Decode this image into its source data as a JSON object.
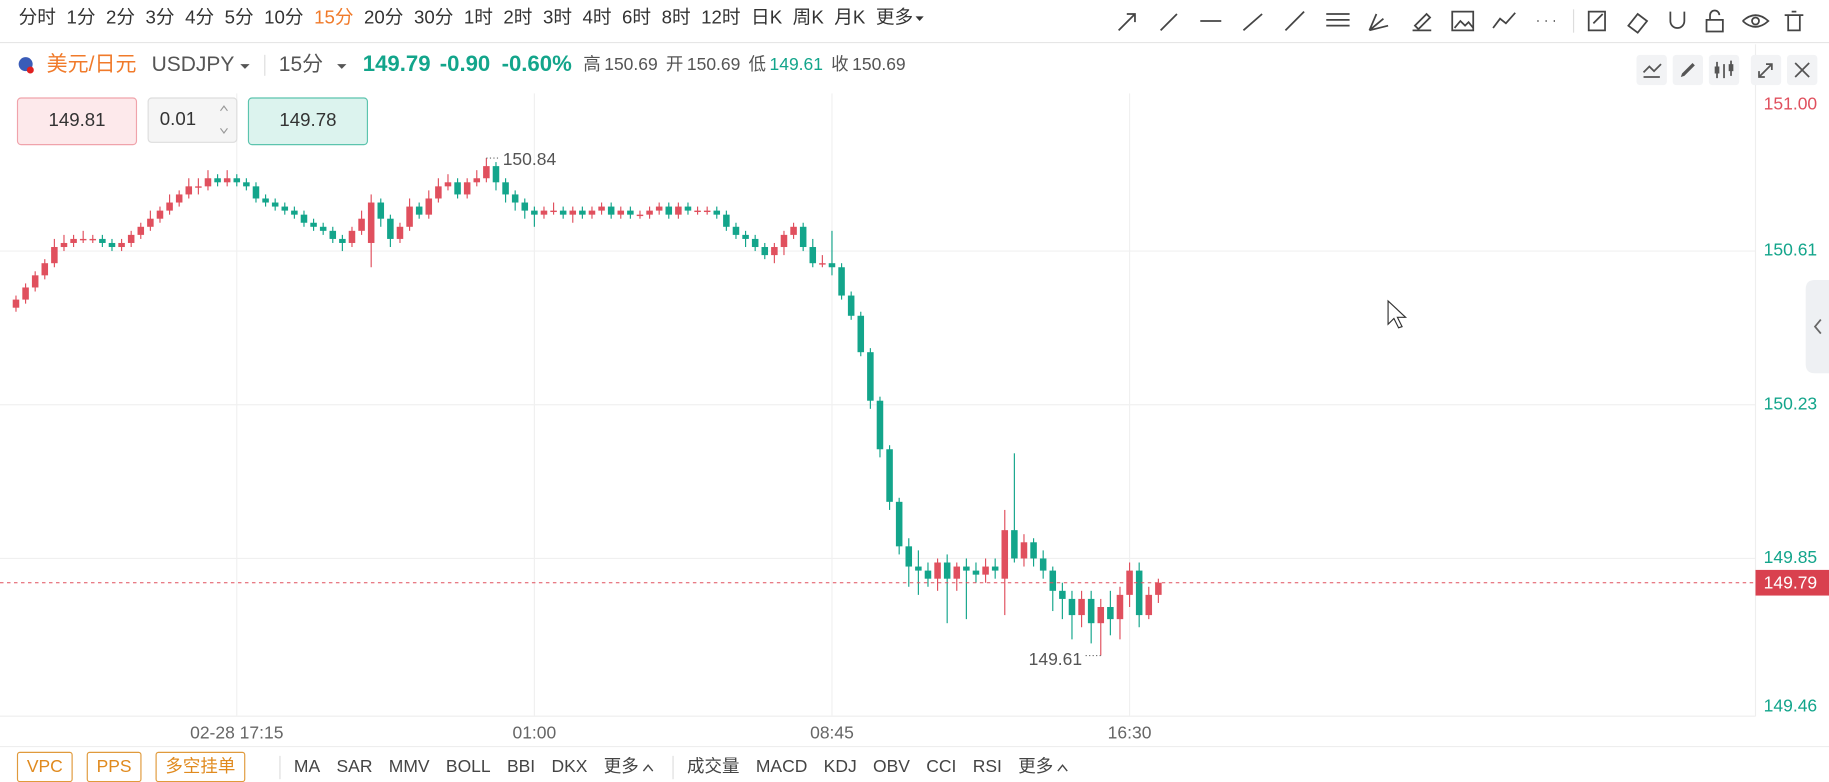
{
  "toolbar": {
    "intervals": [
      "分时",
      "1分",
      "2分",
      "3分",
      "4分",
      "5分",
      "10分",
      "15分",
      "20分",
      "30分",
      "1时",
      "2时",
      "3时",
      "4时",
      "6时",
      "8时",
      "12时",
      "日K",
      "周K",
      "月K",
      "更多"
    ]
  },
  "header": {
    "name": "美元/日元",
    "symbol": "USDJPY",
    "interval": "15分",
    "price": "149.79",
    "change": "-0.90",
    "change_pct": "-0.60%",
    "stats": [
      {
        "label": "高",
        "value": "150.69"
      },
      {
        "label": "开",
        "value": "150.69"
      },
      {
        "label": "低",
        "value": "149.61"
      },
      {
        "label": "收",
        "value": "150.69"
      }
    ]
  },
  "order": {
    "sell": "149.81",
    "lot": "0.01",
    "buy": "149.78"
  },
  "chart_data": {
    "type": "candlestick",
    "categories": [
      null,
      null,
      null,
      null,
      null,
      null,
      null,
      null,
      null,
      null,
      null,
      null,
      null,
      null,
      null,
      null,
      null,
      null,
      null,
      null,
      null,
      null,
      null,
      "02-28 17:15",
      null,
      null,
      null,
      null,
      null,
      null,
      null,
      null,
      null,
      null,
      null,
      null,
      null,
      null,
      null,
      null,
      null,
      null,
      null,
      null,
      null,
      null,
      null,
      null,
      null,
      null,
      null,
      null,
      null,
      null,
      "01:00",
      null,
      null,
      null,
      null,
      null,
      null,
      null,
      null,
      null,
      null,
      null,
      null,
      null,
      null,
      null,
      null,
      null,
      null,
      null,
      null,
      null,
      null,
      null,
      null,
      null,
      null,
      null,
      null,
      null,
      null,
      "08:45",
      null,
      null,
      null,
      null,
      null,
      null,
      null,
      null,
      null,
      null,
      null,
      null,
      null,
      null,
      null,
      null,
      null,
      null,
      null,
      null,
      null,
      null,
      null,
      null,
      null,
      null,
      null,
      null,
      null,
      null,
      "16:30",
      null,
      null,
      null
    ],
    "open": [
      150.47,
      150.49,
      150.52,
      150.55,
      150.58,
      150.62,
      150.63,
      150.64,
      150.64,
      150.64,
      150.63,
      150.62,
      150.63,
      150.65,
      150.67,
      150.69,
      150.71,
      150.73,
      150.75,
      150.77,
      150.77,
      150.79,
      150.78,
      150.79,
      150.78,
      150.77,
      150.74,
      150.73,
      150.72,
      150.71,
      150.7,
      150.68,
      150.67,
      150.66,
      150.64,
      150.63,
      150.66,
      150.63,
      150.73,
      150.69,
      150.64,
      150.67,
      150.72,
      150.7,
      150.74,
      150.77,
      150.78,
      150.75,
      150.78,
      150.79,
      150.82,
      150.78,
      150.75,
      150.73,
      150.71,
      150.7,
      150.71,
      150.71,
      150.7,
      150.71,
      150.7,
      150.71,
      150.72,
      150.7,
      150.71,
      150.7,
      150.7,
      150.71,
      150.72,
      150.7,
      150.72,
      150.71,
      150.71,
      150.71,
      150.7,
      150.67,
      150.65,
      150.64,
      150.62,
      150.6,
      150.62,
      150.65,
      150.67,
      150.62,
      150.58,
      150.58,
      150.57,
      150.5,
      150.45,
      150.36,
      150.24,
      150.12,
      149.99,
      149.88,
      149.83,
      149.82,
      149.8,
      149.84,
      149.8,
      149.83,
      149.82,
      149.81,
      149.83,
      149.8,
      149.92,
      149.85,
      149.89,
      149.85,
      149.82,
      149.77,
      149.75,
      149.71,
      149.75,
      149.69,
      149.73,
      149.7,
      149.76,
      149.82,
      149.71,
      149.76
    ],
    "high": [
      150.5,
      150.53,
      150.56,
      150.59,
      150.64,
      150.65,
      150.65,
      150.66,
      150.65,
      150.65,
      150.64,
      150.64,
      150.66,
      150.68,
      150.71,
      150.72,
      150.75,
      150.76,
      150.79,
      150.79,
      150.81,
      150.8,
      150.81,
      150.8,
      150.79,
      150.78,
      150.75,
      150.74,
      150.73,
      150.72,
      150.71,
      150.69,
      150.68,
      150.67,
      150.65,
      150.67,
      150.71,
      150.75,
      150.74,
      150.7,
      150.68,
      150.74,
      150.73,
      150.76,
      150.79,
      150.8,
      150.79,
      150.79,
      150.81,
      150.84,
      150.83,
      150.79,
      150.76,
      150.74,
      150.72,
      150.72,
      150.73,
      150.72,
      150.72,
      150.72,
      150.72,
      150.73,
      150.73,
      150.72,
      150.72,
      150.71,
      150.72,
      150.73,
      150.73,
      150.73,
      150.73,
      150.72,
      150.72,
      150.72,
      150.71,
      150.68,
      150.66,
      150.65,
      150.63,
      150.63,
      150.66,
      150.68,
      150.68,
      150.64,
      150.6,
      150.66,
      150.58,
      150.51,
      150.46,
      150.37,
      150.25,
      150.13,
      150.0,
      149.9,
      149.87,
      149.84,
      149.85,
      149.86,
      149.84,
      149.85,
      149.84,
      149.85,
      149.85,
      149.97,
      150.11,
      149.91,
      149.9,
      149.87,
      149.83,
      149.79,
      149.77,
      149.77,
      149.77,
      149.75,
      149.77,
      149.78,
      149.84,
      149.84,
      149.78,
      149.8
    ],
    "low": [
      150.46,
      150.48,
      150.51,
      150.54,
      150.57,
      150.61,
      150.62,
      150.63,
      150.63,
      150.62,
      150.61,
      150.61,
      150.62,
      150.64,
      150.66,
      150.68,
      150.7,
      150.72,
      150.74,
      150.75,
      150.76,
      150.77,
      150.77,
      150.77,
      150.76,
      150.73,
      150.72,
      150.71,
      150.7,
      150.69,
      150.67,
      150.66,
      150.65,
      150.63,
      150.61,
      150.62,
      150.65,
      150.57,
      150.67,
      150.62,
      150.63,
      150.66,
      150.69,
      150.69,
      150.73,
      150.76,
      150.74,
      150.74,
      150.77,
      150.78,
      150.76,
      150.73,
      150.71,
      150.69,
      150.67,
      150.69,
      150.7,
      150.69,
      150.68,
      150.69,
      150.69,
      150.7,
      150.69,
      150.69,
      150.69,
      150.69,
      150.69,
      150.7,
      150.69,
      150.69,
      150.7,
      150.7,
      150.7,
      150.69,
      150.66,
      150.64,
      150.62,
      150.61,
      150.59,
      150.58,
      150.6,
      150.64,
      150.61,
      150.57,
      150.57,
      150.55,
      150.49,
      150.44,
      150.35,
      150.22,
      150.1,
      149.97,
      149.86,
      149.78,
      149.76,
      149.78,
      149.77,
      149.69,
      149.77,
      149.7,
      149.79,
      149.79,
      149.8,
      149.71,
      149.84,
      149.83,
      149.83,
      149.8,
      149.72,
      149.7,
      149.65,
      149.68,
      149.64,
      149.61,
      149.66,
      149.65,
      149.73,
      149.68,
      149.7,
      149.74
    ],
    "close": [
      150.49,
      150.52,
      150.55,
      150.58,
      150.62,
      150.63,
      150.64,
      150.64,
      150.64,
      150.63,
      150.62,
      150.63,
      150.65,
      150.67,
      150.69,
      150.71,
      150.73,
      150.75,
      150.77,
      150.77,
      150.79,
      150.78,
      150.79,
      150.78,
      150.77,
      150.74,
      150.73,
      150.72,
      150.71,
      150.7,
      150.68,
      150.67,
      150.66,
      150.64,
      150.63,
      150.66,
      150.69,
      150.73,
      150.69,
      150.64,
      150.67,
      150.72,
      150.7,
      150.74,
      150.77,
      150.78,
      150.75,
      150.78,
      150.79,
      150.82,
      150.78,
      150.75,
      150.73,
      150.71,
      150.7,
      150.71,
      150.71,
      150.7,
      150.71,
      150.7,
      150.71,
      150.72,
      150.7,
      150.71,
      150.7,
      150.7,
      150.71,
      150.72,
      150.7,
      150.72,
      150.71,
      150.71,
      150.71,
      150.7,
      150.67,
      150.65,
      150.64,
      150.62,
      150.6,
      150.62,
      150.65,
      150.67,
      150.62,
      150.58,
      150.58,
      150.57,
      150.5,
      150.45,
      150.36,
      150.24,
      150.12,
      149.99,
      149.88,
      149.83,
      149.82,
      149.8,
      149.84,
      149.8,
      149.83,
      149.82,
      149.81,
      149.83,
      149.82,
      149.92,
      149.85,
      149.89,
      149.85,
      149.82,
      149.77,
      149.75,
      149.71,
      149.75,
      149.69,
      149.73,
      149.7,
      149.76,
      149.82,
      149.71,
      149.76,
      149.79
    ],
    "up_color": "#e0505e",
    "down_color": "#13a58b",
    "ylim": [
      149.46,
      151.0
    ],
    "yticks": [
      {
        "value": 151,
        "label": "151.00"
      },
      150.61,
      150.23,
      149.85,
      149.46
    ],
    "grid": true
  },
  "footer": {
    "tools": [
      "VPC",
      "PPS",
      "多空挂单"
    ],
    "main_indicators": [
      "MA",
      "SAR",
      "MMV",
      "BOLL",
      "BBI",
      "DKX",
      "更多"
    ],
    "sub_indicators": [
      "成交量",
      "MACD",
      "KDJ",
      "OBV",
      "CCI",
      "RSI",
      "更多"
    ]
  }
}
